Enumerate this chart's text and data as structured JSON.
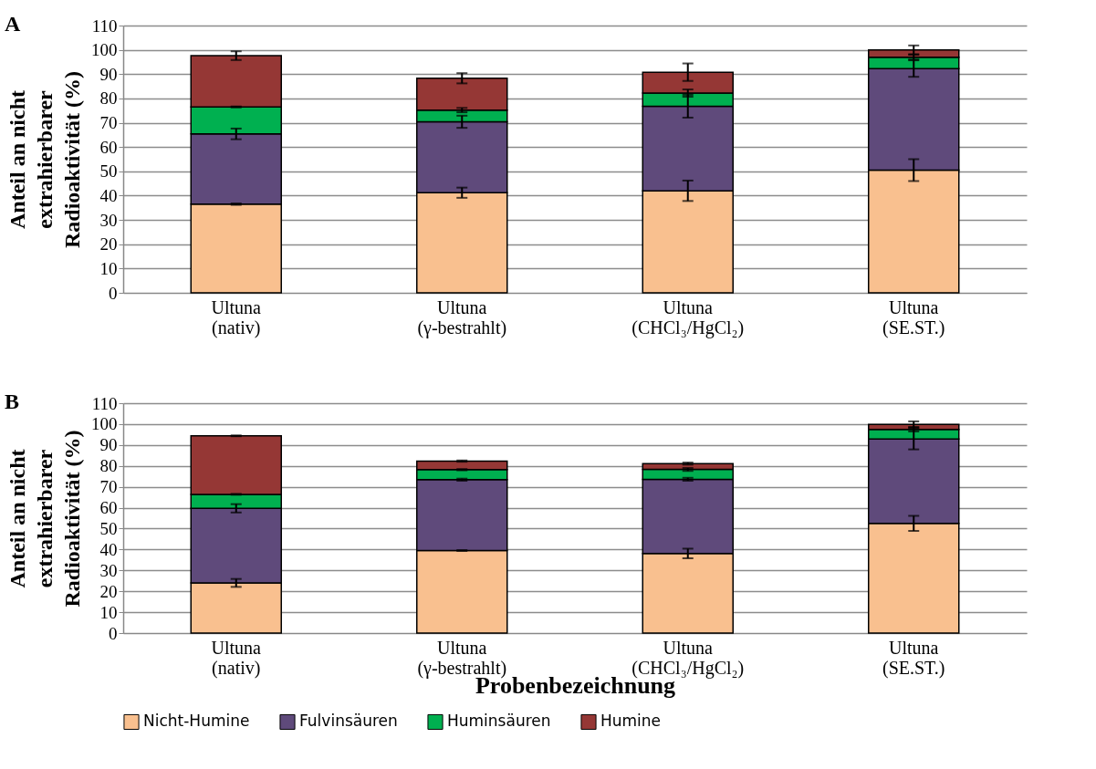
{
  "chart_data": [
    {
      "type": "bar",
      "title": "A",
      "stacked": true,
      "ylabel": "Anteil an nicht\nextrahierbarer\nRadioaktivität (%)",
      "categories": [
        "Ultuna\n(nativ)",
        "Ultuna\n(γ-bestrahlt)",
        "Ultuna\n(CHCl₃/HgCl₂)",
        "Ultuna\n(SE.ST.)"
      ],
      "series": [
        {
          "color": "#f9c08f",
          "values": [
            36.5,
            41.2,
            42.0,
            50.5
          ],
          "errors": [
            0.3,
            2.1,
            4.2,
            4.5
          ]
        },
        {
          "color": "#5f4a7b",
          "values": [
            28.9,
            29.2,
            34.8,
            41.8
          ],
          "errors": [
            2.2,
            2.5,
            4.7,
            3.4
          ]
        },
        {
          "color": "#00b050",
          "values": [
            11.1,
            4.8,
            5.4,
            4.7
          ],
          "errors": [
            0.2,
            0.9,
            1.5,
            1.0
          ]
        },
        {
          "color": "#953735",
          "values": [
            21.1,
            13.1,
            8.6,
            3.0
          ],
          "errors": [
            1.8,
            2.1,
            3.6,
            1.8
          ]
        }
      ],
      "ylim": [
        0,
        110
      ],
      "yticks": [
        0,
        10,
        20,
        30,
        40,
        50,
        60,
        70,
        80,
        90,
        100,
        110
      ],
      "grid": "y"
    },
    {
      "type": "bar",
      "title": "B",
      "stacked": true,
      "ylabel": "Anteil an nicht\nextrahierbarer\nRadioaktivität (%)",
      "xlabel": "Probenbezeichnung",
      "categories": [
        "Ultuna\n(nativ)",
        "Ultuna\n(γ-bestrahlt)",
        "Ultuna\n(CHCl₃/HgCl₂)",
        "Ultuna\n(SE.ST.)"
      ],
      "series": [
        {
          "name": "Nicht-Humine",
          "color": "#f9c08f",
          "values": [
            24.0,
            39.5,
            38.1,
            52.5
          ],
          "errors": [
            1.9,
            0.2,
            2.3,
            3.6
          ]
        },
        {
          "name": "Fulvinsäuren",
          "color": "#5f4a7b",
          "values": [
            35.7,
            33.9,
            35.5,
            40.4
          ],
          "errors": [
            2.0,
            0.5,
            0.7,
            5.0
          ]
        },
        {
          "name": "Huminsäuren",
          "color": "#00b050",
          "values": [
            6.7,
            4.8,
            4.7,
            4.6
          ],
          "errors": [
            0.2,
            0.3,
            0.7,
            1.0
          ]
        },
        {
          "name": "Humine",
          "color": "#953735",
          "values": [
            28.0,
            4.1,
            2.8,
            2.4
          ],
          "errors": [
            0.2,
            0.3,
            0.5,
            1.4
          ]
        }
      ],
      "ylim": [
        0,
        110
      ],
      "yticks": [
        0,
        10,
        20,
        30,
        40,
        50,
        60,
        70,
        80,
        90,
        100,
        110
      ],
      "grid": "y",
      "legend": "bottom"
    }
  ]
}
